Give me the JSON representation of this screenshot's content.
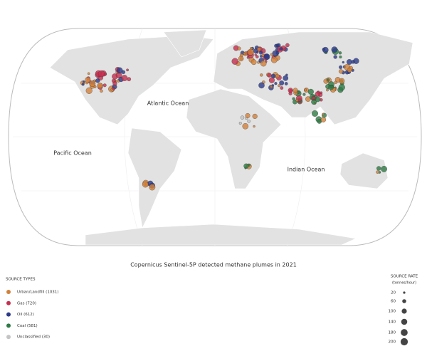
{
  "map": {
    "ocean_labels": [
      "Atlantic Ocean",
      "Pacific Ocean",
      "Indian Ocean"
    ],
    "title": "Copernicus Sentinel-5P detected methane plumes in 2021",
    "source_types": {
      "title": "SOURCE TYPES",
      "items": [
        {
          "label": "Urban/Landfill (1031)",
          "color": "#d2813a"
        },
        {
          "label": "Gas (720)",
          "color": "#c4304f"
        },
        {
          "label": "Oil (612)",
          "color": "#2b3a8a"
        },
        {
          "label": "Coal (581)",
          "color": "#2d7a44"
        },
        {
          "label": "Unclassified (30)",
          "color": "#c4c4c4"
        }
      ]
    },
    "source_rate": {
      "title": "SOURCE RATE",
      "unit": "(tonnes/hour)",
      "sizes": [
        20,
        60,
        100,
        140,
        180,
        200
      ]
    }
  }
}
